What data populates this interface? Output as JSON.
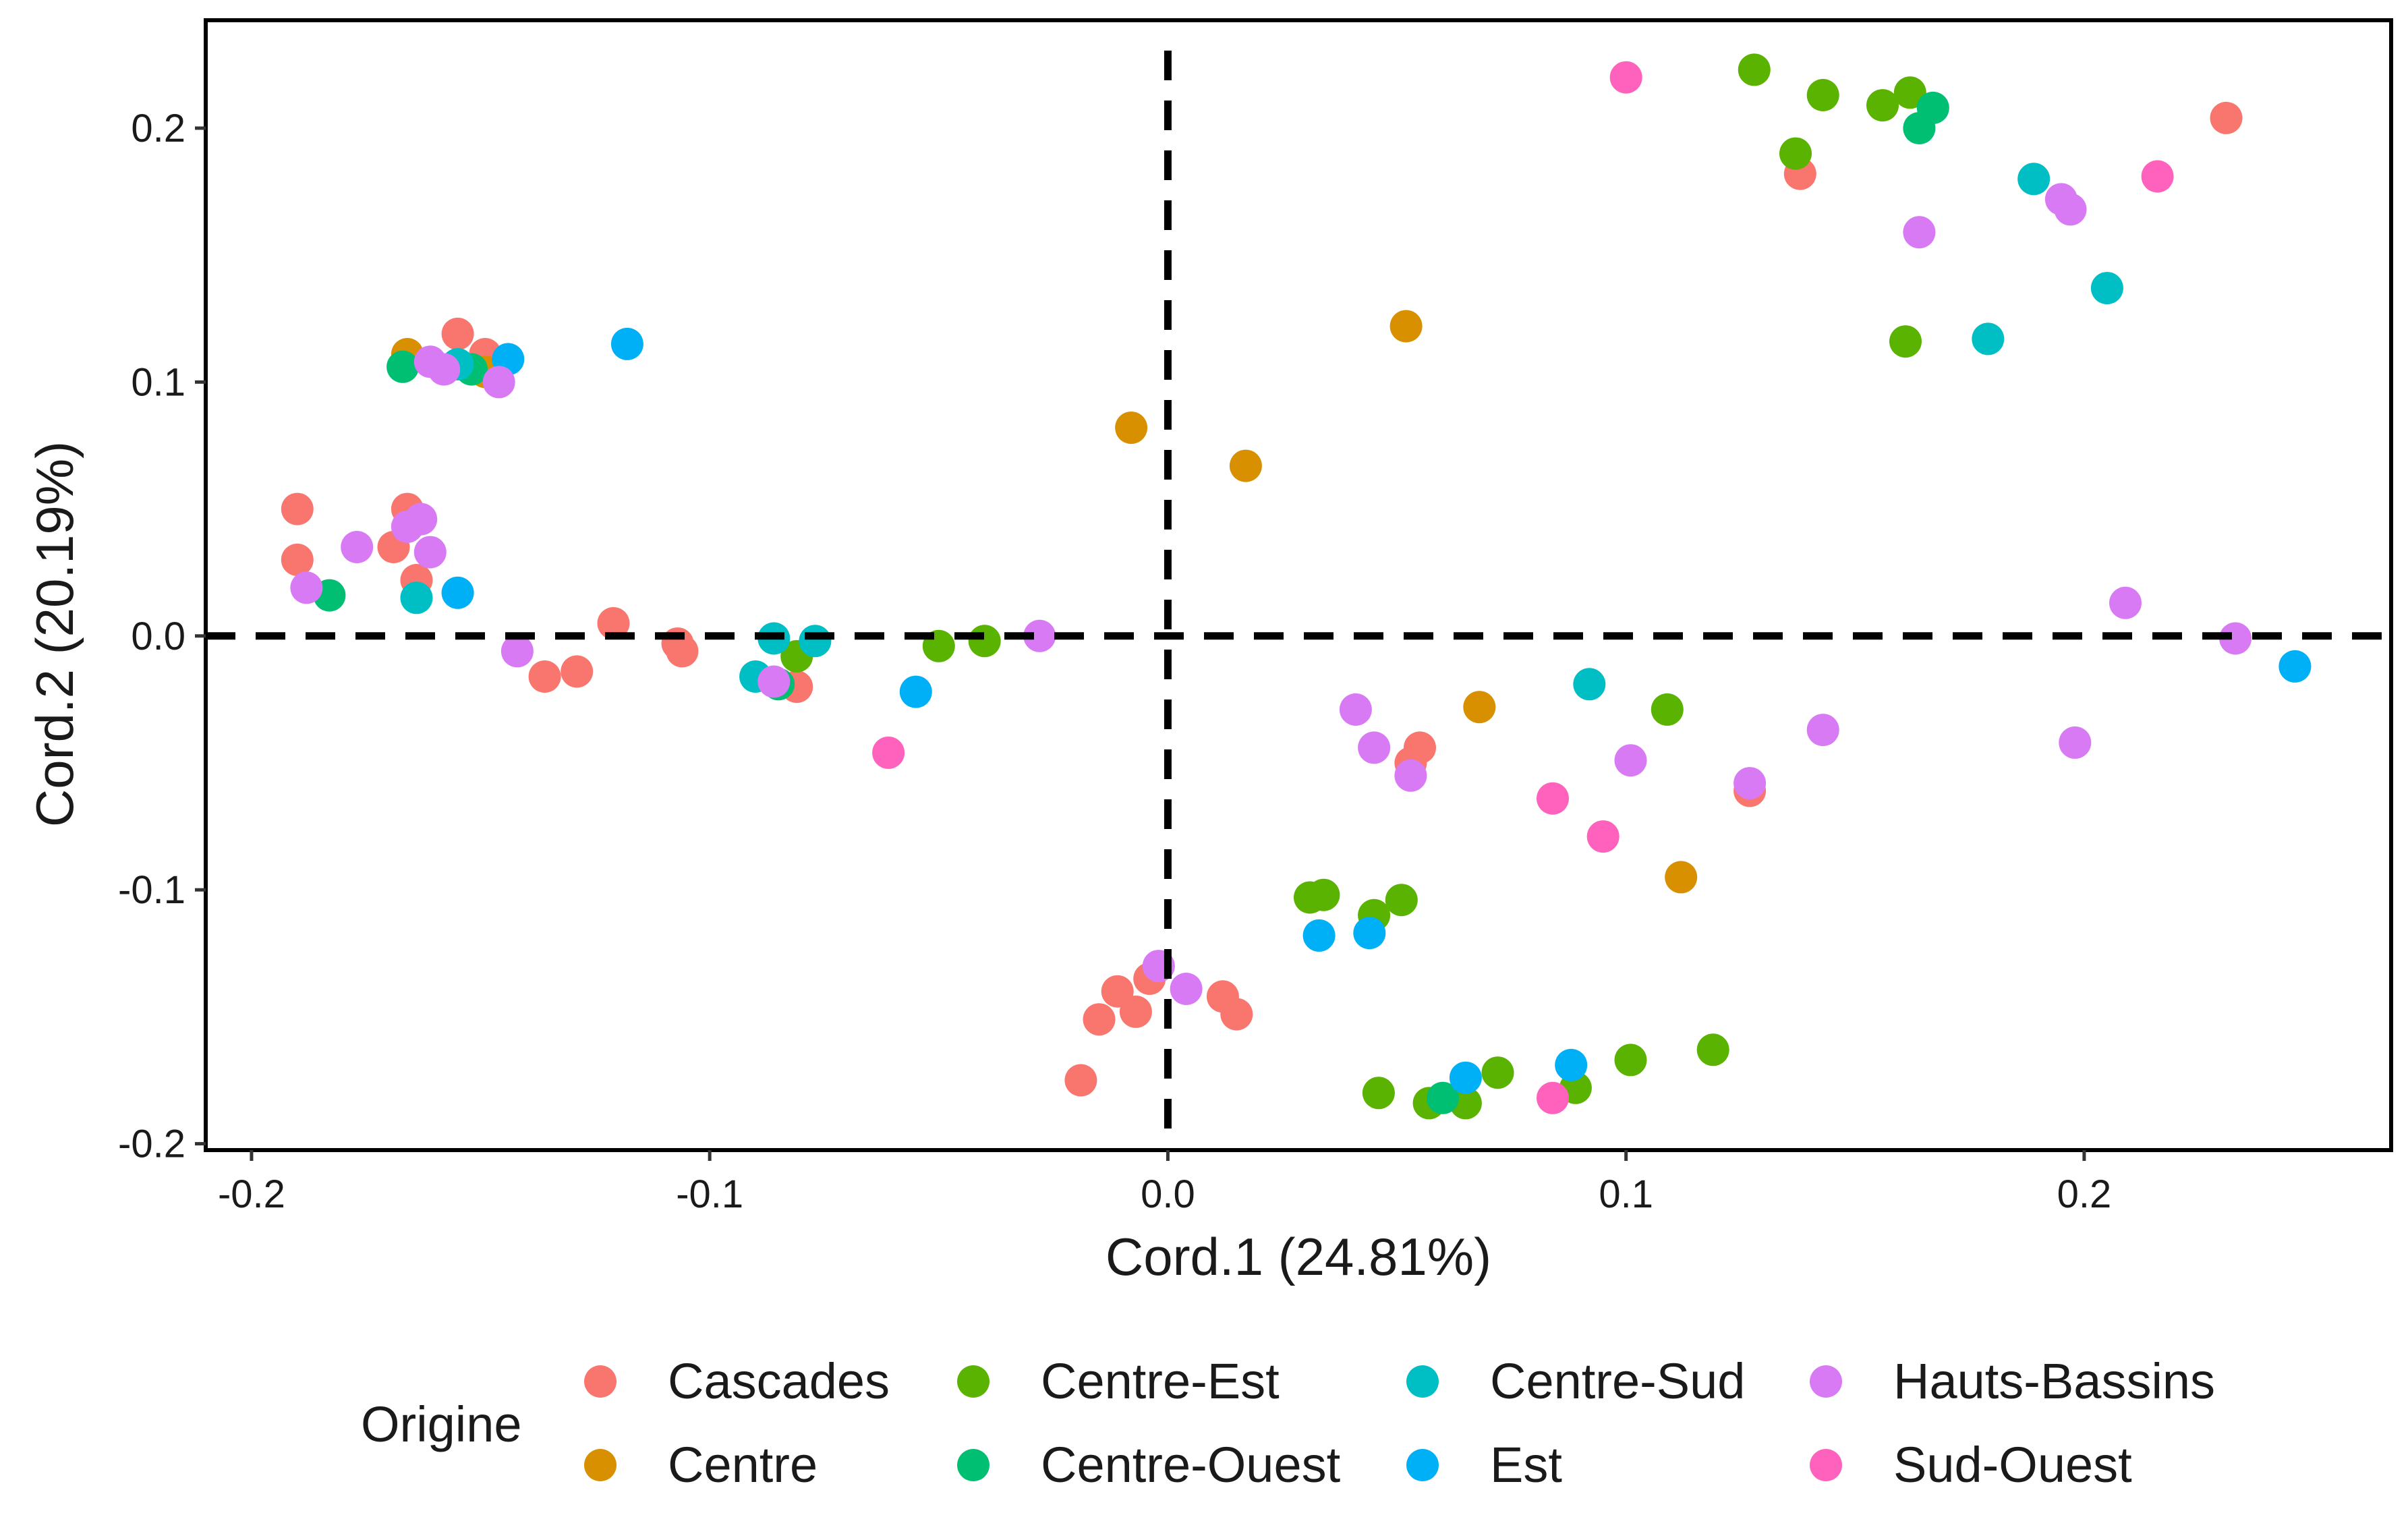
{
  "chart_data": {
    "type": "scatter",
    "title": "",
    "xlabel": "Cord.1 (24.81%)",
    "ylabel": "Cord.2 (20.19%)",
    "xlim": [
      -0.21,
      0.267
    ],
    "ylim": [
      -0.2025,
      0.2425
    ],
    "x_ticks": [
      -0.2,
      -0.1,
      0.0,
      0.1,
      0.2
    ],
    "x_tick_labels": [
      "-0.2",
      "-0.1",
      "0.0",
      "0.1",
      "0.2"
    ],
    "y_ticks": [
      -0.2,
      -0.1,
      0.0,
      0.1,
      0.2
    ],
    "y_tick_labels": [
      "-0.2",
      "-0.1",
      "0.0",
      "0.1",
      "0.2"
    ],
    "reference_lines": {
      "x": 0,
      "y": 0,
      "style": "dashed"
    },
    "grid": false,
    "legend": {
      "title": "Origine",
      "position": "bottom"
    },
    "series": [
      {
        "name": "Cascades",
        "color": "#F8766D",
        "points": [
          [
            -0.19,
            0.05
          ],
          [
            -0.19,
            0.03
          ],
          [
            -0.166,
            0.05
          ],
          [
            -0.169,
            0.035
          ],
          [
            -0.164,
            0.022
          ],
          [
            -0.155,
            0.119
          ],
          [
            -0.149,
            0.111
          ],
          [
            -0.121,
            0.005
          ],
          [
            -0.136,
            -0.016
          ],
          [
            -0.129,
            -0.014
          ],
          [
            -0.107,
            -0.003
          ],
          [
            -0.106,
            -0.006
          ],
          [
            -0.081,
            -0.02
          ],
          [
            -0.019,
            -0.175
          ],
          [
            -0.015,
            -0.151
          ],
          [
            -0.011,
            -0.14
          ],
          [
            -0.007,
            -0.148
          ],
          [
            -0.004,
            -0.135
          ],
          [
            0.012,
            -0.142
          ],
          [
            0.015,
            -0.149
          ],
          [
            0.053,
            -0.05
          ],
          [
            0.055,
            -0.044
          ],
          [
            0.127,
            -0.061
          ],
          [
            0.138,
            0.182
          ],
          [
            0.231,
            0.204
          ]
        ]
      },
      {
        "name": "Centre",
        "color": "#D89000",
        "points": [
          [
            -0.166,
            0.111
          ],
          [
            -0.149,
            0.104
          ],
          [
            -0.008,
            0.082
          ],
          [
            0.017,
            0.067
          ],
          [
            0.052,
            0.122
          ],
          [
            0.068,
            -0.028
          ],
          [
            0.112,
            -0.095
          ]
        ]
      },
      {
        "name": "Centre-Est",
        "color": "#5AB300",
        "points": [
          [
            -0.081,
            -0.008
          ],
          [
            -0.05,
            -0.004
          ],
          [
            -0.04,
            -0.002
          ],
          [
            0.031,
            -0.103
          ],
          [
            0.034,
            -0.102
          ],
          [
            0.045,
            -0.11
          ],
          [
            0.051,
            -0.104
          ],
          [
            0.046,
            -0.18
          ],
          [
            0.057,
            -0.184
          ],
          [
            0.065,
            -0.184
          ],
          [
            0.072,
            -0.172
          ],
          [
            0.089,
            -0.178
          ],
          [
            0.101,
            -0.167
          ],
          [
            0.109,
            -0.029
          ],
          [
            0.119,
            -0.163
          ],
          [
            0.128,
            0.223
          ],
          [
            0.137,
            0.19
          ],
          [
            0.143,
            0.213
          ],
          [
            0.156,
            0.209
          ],
          [
            0.161,
            0.116
          ],
          [
            0.162,
            0.214
          ]
        ]
      },
      {
        "name": "Centre-Ouest",
        "color": "#00BF73",
        "points": [
          [
            -0.183,
            0.016
          ],
          [
            -0.167,
            0.106
          ],
          [
            -0.152,
            0.105
          ],
          [
            -0.085,
            -0.019
          ],
          [
            0.06,
            -0.182
          ],
          [
            0.164,
            0.2
          ],
          [
            0.167,
            0.208
          ]
        ]
      },
      {
        "name": "Centre-Sud",
        "color": "#00BFC4",
        "points": [
          [
            -0.164,
            0.015
          ],
          [
            -0.155,
            0.107
          ],
          [
            -0.086,
            -0.001
          ],
          [
            -0.077,
            -0.002
          ],
          [
            -0.09,
            -0.016
          ],
          [
            0.092,
            -0.019
          ],
          [
            0.179,
            0.117
          ],
          [
            0.189,
            0.18
          ],
          [
            0.205,
            0.137
          ]
        ]
      },
      {
        "name": "Est",
        "color": "#00B0F6",
        "points": [
          [
            -0.155,
            0.017
          ],
          [
            -0.144,
            0.109
          ],
          [
            -0.118,
            0.115
          ],
          [
            -0.055,
            -0.022
          ],
          [
            0.033,
            -0.118
          ],
          [
            0.044,
            -0.117
          ],
          [
            0.065,
            -0.174
          ],
          [
            0.088,
            -0.169
          ],
          [
            0.246,
            -0.012
          ]
        ]
      },
      {
        "name": "Hauts-Bassins",
        "color": "#D97AF5",
        "points": [
          [
            -0.188,
            0.019
          ],
          [
            -0.177,
            0.035
          ],
          [
            -0.166,
            0.043
          ],
          [
            -0.163,
            0.046
          ],
          [
            -0.161,
            0.033
          ],
          [
            -0.161,
            0.108
          ],
          [
            -0.158,
            0.105
          ],
          [
            -0.146,
            0.1
          ],
          [
            -0.142,
            -0.006
          ],
          [
            -0.086,
            -0.018
          ],
          [
            -0.028,
            0.0
          ],
          [
            -0.002,
            -0.13
          ],
          [
            0.004,
            -0.139
          ],
          [
            0.041,
            -0.029
          ],
          [
            0.045,
            -0.044
          ],
          [
            0.053,
            -0.055
          ],
          [
            0.101,
            -0.049
          ],
          [
            0.127,
            -0.058
          ],
          [
            0.143,
            -0.037
          ],
          [
            0.164,
            0.159
          ],
          [
            0.195,
            0.172
          ],
          [
            0.197,
            0.168
          ],
          [
            0.198,
            -0.042
          ],
          [
            0.209,
            0.013
          ],
          [
            0.233,
            -0.001
          ]
        ]
      },
      {
        "name": "Sud-Ouest",
        "color": "#FF62BC",
        "points": [
          [
            -0.061,
            -0.046
          ],
          [
            0.084,
            -0.064
          ],
          [
            0.084,
            -0.182
          ],
          [
            0.095,
            -0.079
          ],
          [
            0.1,
            0.22
          ],
          [
            0.216,
            0.181
          ]
        ]
      }
    ]
  }
}
